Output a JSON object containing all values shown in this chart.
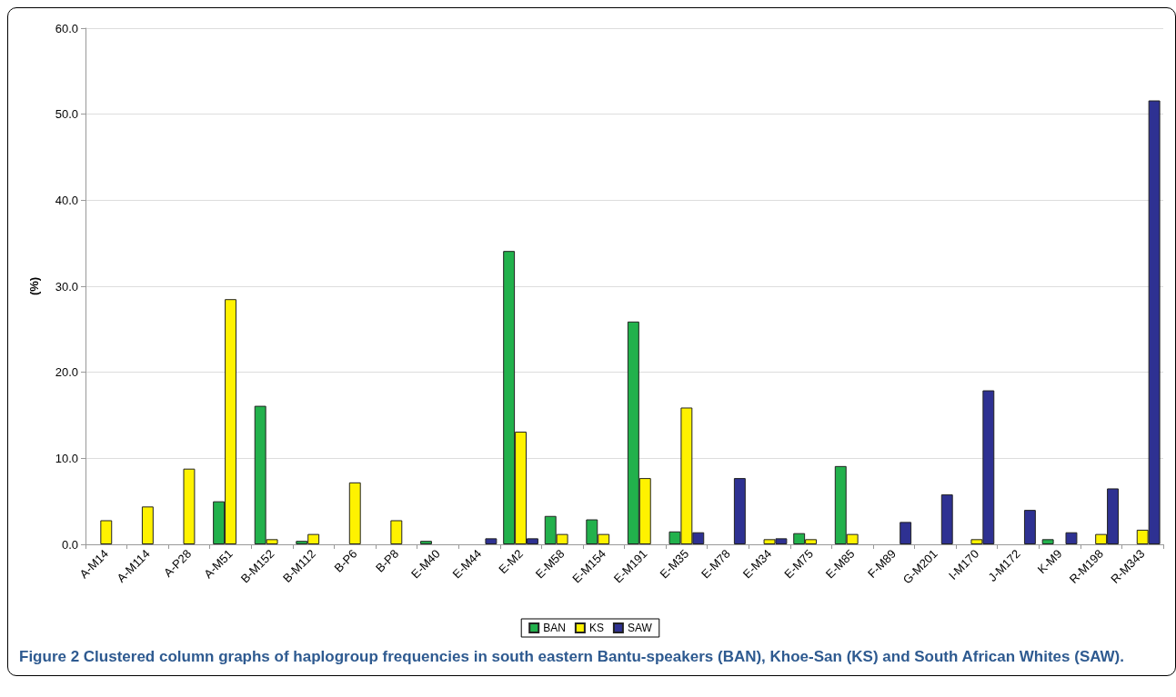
{
  "chart_data": {
    "type": "bar",
    "ylabel": "(%)",
    "categories": [
      "A-M14",
      "A-M114",
      "A-P28",
      "A-M51",
      "B-M152",
      "B-M112",
      "B-P6",
      "B-P8",
      "E-M40",
      "E-M44",
      "E-M2",
      "E-M58",
      "E-M154",
      "E-M191",
      "E-M35",
      "E-M78",
      "E-M34",
      "E-M75",
      "E-M85",
      "F-M89",
      "G-M201",
      "I-M170",
      "J-M172",
      "K-M9",
      "R-M198",
      "R-M343"
    ],
    "series": [
      {
        "name": "BAN",
        "color": "#22b14c",
        "values": [
          null,
          null,
          null,
          5.0,
          16.1,
          0.4,
          null,
          null,
          0.4,
          null,
          34.1,
          3.3,
          2.9,
          25.9,
          1.5,
          null,
          null,
          1.3,
          9.1,
          null,
          null,
          null,
          null,
          0.6,
          null,
          null
        ]
      },
      {
        "name": "KS",
        "color": "#fff200",
        "values": [
          2.8,
          4.4,
          8.8,
          28.5,
          0.6,
          1.2,
          7.2,
          2.8,
          null,
          null,
          13.1,
          1.2,
          1.2,
          7.7,
          15.9,
          null,
          0.6,
          0.6,
          1.2,
          null,
          null,
          0.6,
          null,
          null,
          1.2,
          1.7
        ]
      },
      {
        "name": "SAW",
        "color": "#2e3192",
        "values": [
          null,
          null,
          null,
          null,
          null,
          null,
          null,
          null,
          null,
          0.7,
          0.7,
          null,
          null,
          null,
          1.4,
          7.7,
          0.7,
          null,
          null,
          2.6,
          5.8,
          17.9,
          4.0,
          1.4,
          6.5,
          51.6
        ]
      }
    ],
    "ylim": [
      0,
      60
    ],
    "yticks": [
      {
        "value": 0,
        "label": "0.0"
      },
      {
        "value": 10,
        "label": "10.0"
      },
      {
        "value": 20,
        "label": "20.0"
      },
      {
        "value": 30,
        "label": "30.0"
      },
      {
        "value": 40,
        "label": "40.0"
      },
      {
        "value": 50,
        "label": "50.0"
      },
      {
        "value": 60,
        "label": "60.0"
      }
    ],
    "grid": "y",
    "legend": "bottom",
    "annotations": [
      "Figure 2 Clustered column graphs of haplogroup frequencies in south eastern Bantu-speakers (BAN), Khoe-San (KS) and South African Whites (SAW)."
    ]
  }
}
